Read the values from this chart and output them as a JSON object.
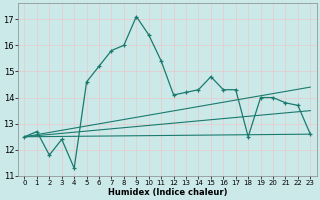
{
  "title": "",
  "xlabel": "Humidex (Indice chaleur)",
  "background_color": "#cce9e9",
  "grid_color": "#e8c8c8",
  "line_color": "#1a7a6e",
  "xlim": [
    -0.5,
    23.5
  ],
  "ylim": [
    11,
    17.6
  ],
  "yticks": [
    11,
    12,
    13,
    14,
    15,
    16,
    17
  ],
  "xticks": [
    0,
    1,
    2,
    3,
    4,
    5,
    6,
    7,
    8,
    9,
    10,
    11,
    12,
    13,
    14,
    15,
    16,
    17,
    18,
    19,
    20,
    21,
    22,
    23
  ],
  "main_line_x": [
    0,
    1,
    2,
    3,
    4,
    5,
    6,
    7,
    8,
    9,
    10,
    11,
    12,
    13,
    14,
    15,
    16,
    17,
    18,
    19,
    20,
    21,
    22,
    23
  ],
  "main_line_y": [
    12.5,
    12.7,
    11.8,
    12.4,
    11.3,
    14.6,
    15.2,
    15.8,
    16.0,
    17.1,
    16.4,
    15.4,
    14.1,
    14.2,
    14.3,
    14.8,
    14.3,
    14.3,
    12.5,
    14.0,
    14.0,
    13.8,
    13.7,
    12.6
  ],
  "line1_x": [
    0,
    23
  ],
  "line1_y": [
    12.5,
    12.6
  ],
  "line2_x": [
    0,
    23
  ],
  "line2_y": [
    12.5,
    13.5
  ],
  "line3_x": [
    0,
    23
  ],
  "line3_y": [
    12.5,
    14.4
  ]
}
